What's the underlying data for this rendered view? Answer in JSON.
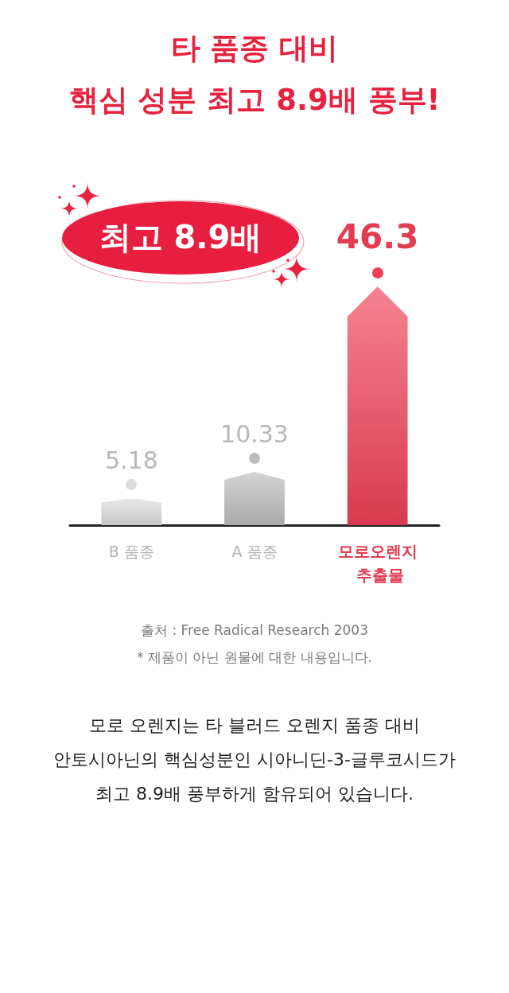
{
  "chart_data": {
    "type": "bar",
    "title": "타 품종 대비\n핵심 성분 최고 8.9배 풍부!",
    "categories": [
      "B 품종",
      "A 품종",
      "모로오렌지 추출물"
    ],
    "values": [
      5.18,
      10.33,
      46.3
    ],
    "colors": [
      "#dcdcdc",
      "#bdbdbd",
      "#f04058"
    ],
    "data_labels": true,
    "annotations": [
      "최고 8.9배",
      "출처 : Free Radical Research 2003",
      "* 제품이 아닌 원물에 대한 내용입니다.",
      "모로 오렌지는 타 블러드 오렌지 품종 대비\n안토시아닌의 핵심성분인 시아니딘-3-글루코시드가\n최고 8.9배 풍부하게 함유되어 있습니다."
    ]
  }
}
